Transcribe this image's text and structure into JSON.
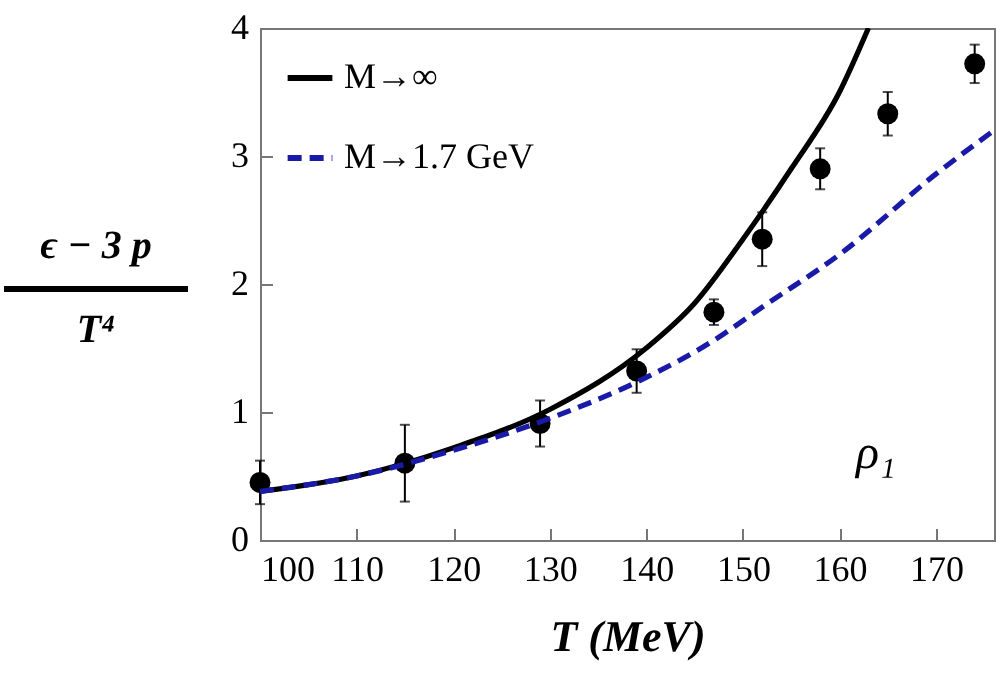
{
  "chart_data": {
    "type": "line",
    "xlabel": "T (MeV)",
    "ylabel": "ϵ − 3 p\nT⁴",
    "annotations": [
      "ρ₁"
    ],
    "xlim": [
      100,
      176
    ],
    "xticks": [
      100,
      110,
      120,
      130,
      140,
      150,
      160,
      170
    ],
    "ylim": [
      0,
      4
    ],
    "yticks": [
      0,
      1,
      2,
      3,
      4
    ],
    "grid": false,
    "legend": "top left",
    "series": [
      {
        "type": "scatter",
        "color": "#000000",
        "marker": "circle",
        "x": [
          100,
          115,
          129,
          139,
          147,
          152,
          158,
          165,
          174
        ],
        "values": [
          0.45,
          0.6,
          0.91,
          1.32,
          1.78,
          2.35,
          2.9,
          3.33,
          3.72
        ],
        "errors": [
          0.17,
          0.3,
          0.18,
          0.17,
          0.1,
          0.21,
          0.16,
          0.17,
          0.15
        ]
      },
      {
        "name": "M→∞",
        "color": "#000000",
        "line_style": "solid",
        "x": [
          100,
          110,
          120,
          130,
          140,
          145,
          150,
          155,
          160,
          163
        ],
        "values": [
          0.38,
          0.5,
          0.72,
          1.02,
          1.5,
          1.85,
          2.35,
          2.9,
          3.5,
          4.0
        ]
      },
      {
        "name": "M→1.7 GeV",
        "color": "#1a1aa8",
        "line_style": "dashed",
        "x": [
          100,
          110,
          120,
          130,
          140,
          147,
          152,
          160,
          170,
          176
        ],
        "values": [
          0.38,
          0.5,
          0.7,
          0.95,
          1.27,
          1.56,
          1.82,
          2.23,
          2.86,
          3.2
        ]
      }
    ]
  }
}
